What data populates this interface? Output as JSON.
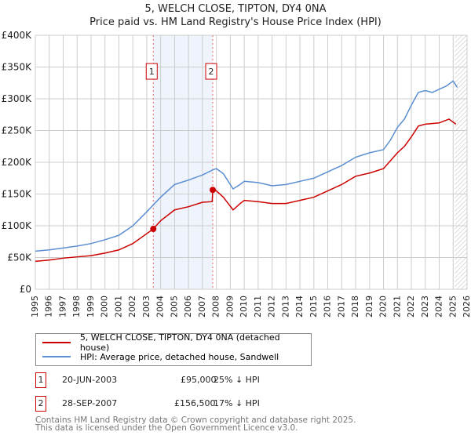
{
  "chart_data": {
    "type": "line",
    "title": "5, WELCH CLOSE, TIPTON, DY4 0NA",
    "subtitle": "Price paid vs. HM Land Registry's House Price Index (HPI)",
    "xlim": [
      1995,
      2026
    ],
    "ylim": [
      0,
      400000
    ],
    "x_ticks": [
      "1995",
      "1996",
      "1997",
      "1998",
      "1999",
      "2000",
      "2001",
      "2002",
      "2003",
      "2004",
      "2005",
      "2006",
      "2007",
      "2008",
      "2009",
      "2010",
      "2011",
      "2012",
      "2013",
      "2014",
      "2015",
      "2016",
      "2017",
      "2018",
      "2019",
      "2020",
      "2021",
      "2022",
      "2023",
      "2024",
      "2025",
      "2026"
    ],
    "y_ticks": [
      {
        "v": 0,
        "label": "£0"
      },
      {
        "v": 50000,
        "label": "£50K"
      },
      {
        "v": 100000,
        "label": "£100K"
      },
      {
        "v": 150000,
        "label": "£150K"
      },
      {
        "v": 200000,
        "label": "£200K"
      },
      {
        "v": 250000,
        "label": "£250K"
      },
      {
        "v": 300000,
        "label": "£300K"
      },
      {
        "v": 350000,
        "label": "£350K"
      },
      {
        "v": 400000,
        "label": "£400K"
      }
    ],
    "grid": true,
    "series": [
      {
        "name": "5, WELCH CLOSE, TIPTON, DY4 0NA (detached house)",
        "color": "#cc0000",
        "points": [
          [
            1995,
            44000
          ],
          [
            1996,
            46000
          ],
          [
            1997,
            49000
          ],
          [
            1998,
            51000
          ],
          [
            1999,
            53000
          ],
          [
            2000,
            57000
          ],
          [
            2001,
            62000
          ],
          [
            2002,
            72000
          ],
          [
            2003.47,
            95000
          ],
          [
            2004,
            108000
          ],
          [
            2005,
            125000
          ],
          [
            2006,
            130000
          ],
          [
            2007,
            137000
          ],
          [
            2007.7,
            138000
          ],
          [
            2007.74,
            156500
          ],
          [
            2008,
            155000
          ],
          [
            2008.5,
            145000
          ],
          [
            2009.2,
            125000
          ],
          [
            2009.7,
            135000
          ],
          [
            2010,
            140000
          ],
          [
            2011,
            138000
          ],
          [
            2012,
            135000
          ],
          [
            2013,
            135000
          ],
          [
            2014,
            140000
          ],
          [
            2015,
            145000
          ],
          [
            2016,
            155000
          ],
          [
            2017,
            165000
          ],
          [
            2018,
            178000
          ],
          [
            2019,
            183000
          ],
          [
            2020,
            190000
          ],
          [
            2021,
            215000
          ],
          [
            2021.5,
            225000
          ],
          [
            2022,
            240000
          ],
          [
            2022.5,
            257000
          ],
          [
            2023,
            260000
          ],
          [
            2024,
            262000
          ],
          [
            2024.7,
            268000
          ],
          [
            2025.2,
            260000
          ]
        ]
      },
      {
        "name": "HPI: Average price, detached house, Sandwell",
        "color": "#5b8fd1",
        "points": [
          [
            1995,
            60000
          ],
          [
            1996,
            62000
          ],
          [
            1997,
            65000
          ],
          [
            1998,
            68000
          ],
          [
            1999,
            72000
          ],
          [
            2000,
            78000
          ],
          [
            2001,
            85000
          ],
          [
            2002,
            100000
          ],
          [
            2003,
            122000
          ],
          [
            2004,
            145000
          ],
          [
            2005,
            165000
          ],
          [
            2006,
            172000
          ],
          [
            2007,
            180000
          ],
          [
            2007.75,
            188000
          ],
          [
            2008,
            190000
          ],
          [
            2008.5,
            182000
          ],
          [
            2009.2,
            158000
          ],
          [
            2009.7,
            165000
          ],
          [
            2010,
            170000
          ],
          [
            2011,
            168000
          ],
          [
            2012,
            163000
          ],
          [
            2013,
            165000
          ],
          [
            2014,
            170000
          ],
          [
            2015,
            175000
          ],
          [
            2016,
            185000
          ],
          [
            2017,
            195000
          ],
          [
            2018,
            208000
          ],
          [
            2019,
            215000
          ],
          [
            2020,
            220000
          ],
          [
            2020.5,
            235000
          ],
          [
            2021,
            255000
          ],
          [
            2021.5,
            268000
          ],
          [
            2022,
            290000
          ],
          [
            2022.5,
            310000
          ],
          [
            2023,
            313000
          ],
          [
            2023.5,
            310000
          ],
          [
            2024,
            315000
          ],
          [
            2024.5,
            320000
          ],
          [
            2025,
            328000
          ],
          [
            2025.3,
            318000
          ]
        ]
      }
    ],
    "sales": [
      {
        "label": "1",
        "x": 2003.47,
        "y": 95000
      },
      {
        "label": "2",
        "x": 2007.74,
        "y": 156500
      }
    ],
    "shaded_range": [
      2003.47,
      2007.74
    ],
    "forecast_hatch_from": 2025.0
  },
  "legend": {
    "red": "5, WELCH CLOSE, TIPTON, DY4 0NA (detached house)",
    "blue": "HPI: Average price, detached house, Sandwell"
  },
  "transactions": [
    {
      "num": "1",
      "date": "20-JUN-2003",
      "price": "£95,000",
      "hpi": "25% ↓ HPI"
    },
    {
      "num": "2",
      "date": "28-SEP-2007",
      "price": "£156,500",
      "hpi": "17% ↓ HPI"
    }
  ],
  "footer": {
    "line1": "Contains HM Land Registry data © Crown copyright and database right 2025.",
    "line2": "This data is licensed under the Open Government Licence v3.0."
  }
}
